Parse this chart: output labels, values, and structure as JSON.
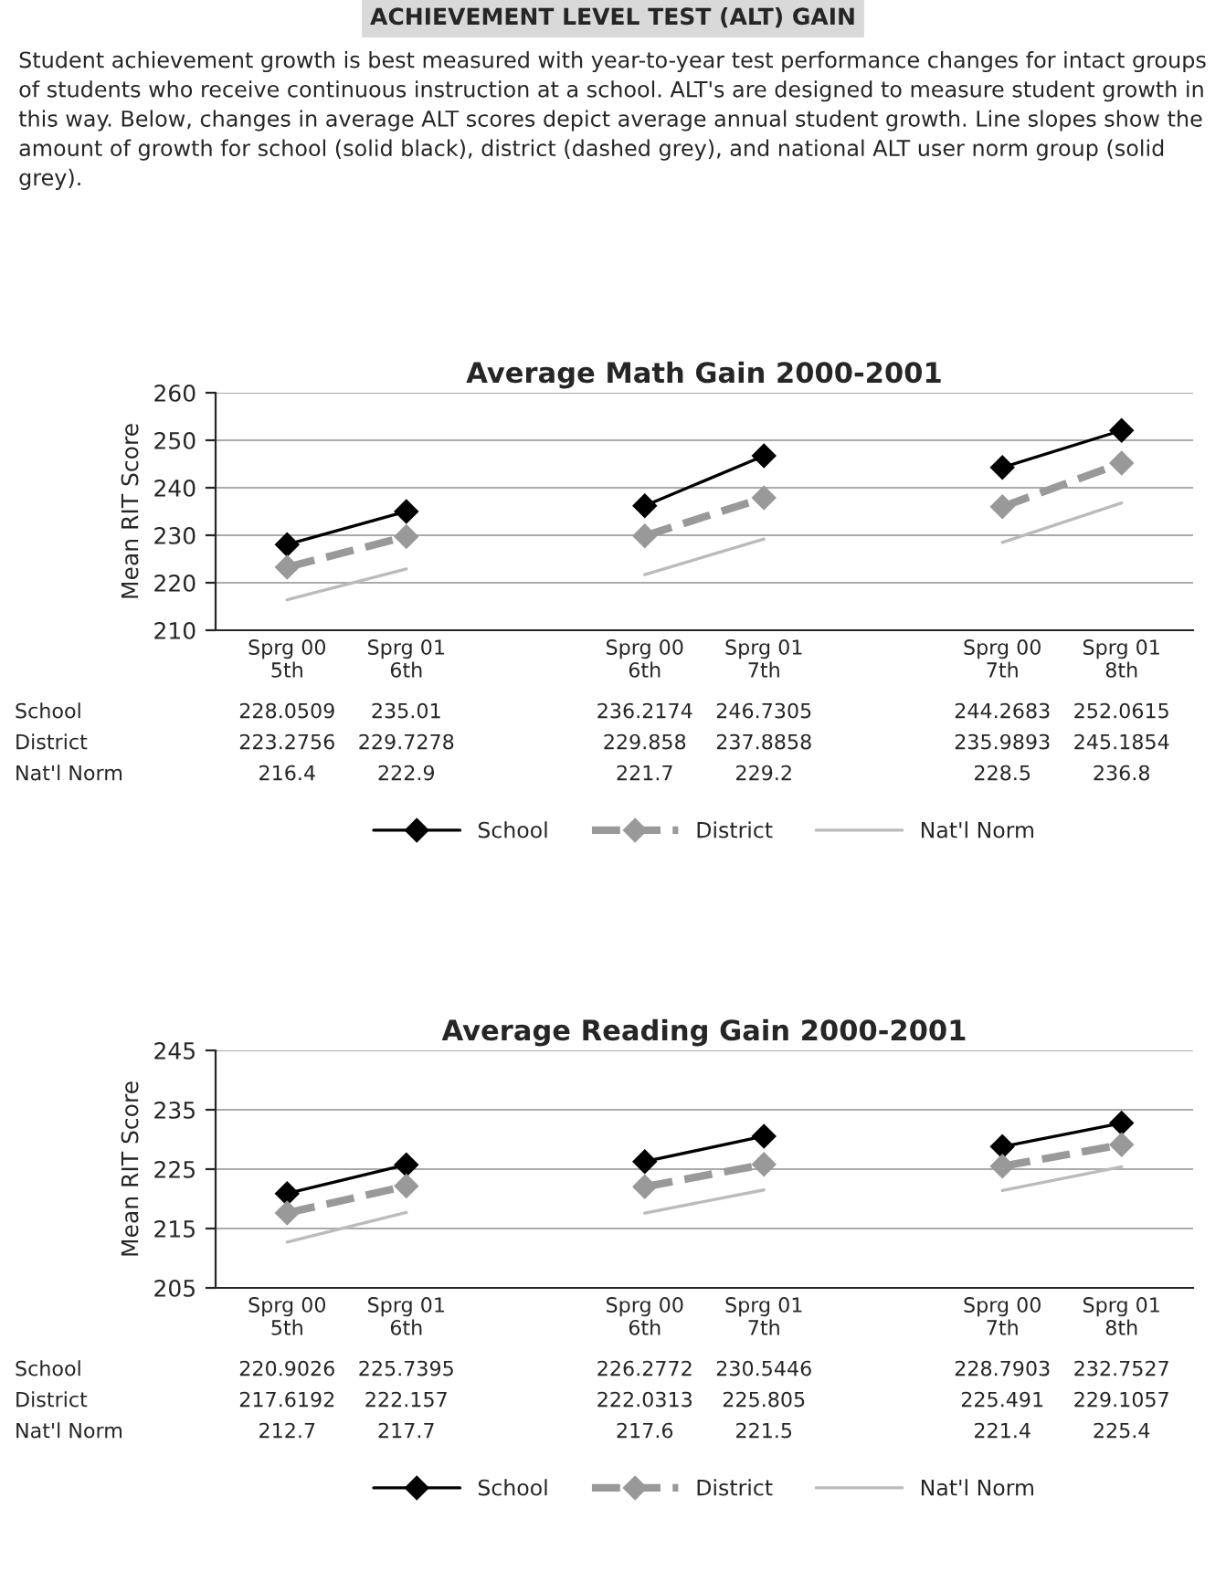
{
  "chart_data": [
    {
      "type": "line",
      "title": "Average Math Gain 2000-2001",
      "ylabel": "Mean RIT Score",
      "annotations": [
        "ACHIEVEMENT LEVEL TEST (ALT) GAIN",
        "Student achievement growth is best measured with year-to-year test performance changes for intact groups of students who receive continuous instruction at a school. ALT's are designed to measure student growth in this way. Below, changes in average ALT scores depict average annual student growth. Line slopes show the amount of growth for school (solid black), district (dashed grey), and national ALT user norm group (solid grey)."
      ],
      "categories": [
        "Sprg 00\n5th",
        "Sprg 01\n6th",
        null,
        "Sprg 00\n6th",
        "Sprg 01\n7th",
        null,
        "Sprg 00\n7th",
        "Sprg 01\n8th"
      ],
      "series": [
        {
          "name": "School",
          "color": "#000000",
          "marker": "diamond",
          "line_style": "solid",
          "values": [
            228.0509,
            235.01,
            null,
            236.2174,
            246.7305,
            null,
            244.2683,
            252.0615
          ]
        },
        {
          "name": "District",
          "color": "#999999",
          "marker": "diamond",
          "line_style": "dashed",
          "values": [
            223.2756,
            229.7278,
            null,
            229.858,
            237.8858,
            null,
            235.9893,
            245.1854
          ]
        },
        {
          "name": "Nat'l Norm",
          "color": "#bbbbbb",
          "marker": "none",
          "line_style": "solid",
          "values": [
            216.4,
            222.9,
            null,
            221.7,
            229.2,
            null,
            228.5,
            236.8
          ]
        }
      ],
      "ylim": [
        210,
        260
      ],
      "yticks": [
        210,
        220,
        230,
        240,
        250,
        260
      ],
      "grid": "y",
      "legend": "bottom",
      "data_labels": true
    },
    {
      "type": "line",
      "title": "Average Reading Gain 2000-2001",
      "ylabel": "Mean RIT Score",
      "categories": [
        "Sprg 00\n5th",
        "Sprg 01\n6th",
        null,
        "Sprg 00\n6th",
        "Sprg 01\n7th",
        null,
        "Sprg 00\n7th",
        "Sprg 01\n8th"
      ],
      "series": [
        {
          "name": "School",
          "color": "#000000",
          "marker": "diamond",
          "line_style": "solid",
          "values": [
            220.9026,
            225.7395,
            null,
            226.2772,
            230.5446,
            null,
            228.7903,
            232.7527
          ]
        },
        {
          "name": "District",
          "color": "#999999",
          "marker": "diamond",
          "line_style": "dashed",
          "values": [
            217.6192,
            222.157,
            null,
            222.0313,
            225.805,
            null,
            225.491,
            229.1057
          ]
        },
        {
          "name": "Nat'l Norm",
          "color": "#bbbbbb",
          "marker": "none",
          "line_style": "solid",
          "values": [
            212.7,
            217.7,
            null,
            217.6,
            221.5,
            null,
            221.4,
            225.4
          ]
        }
      ],
      "ylim": [
        205,
        245
      ],
      "yticks": [
        205,
        215,
        225,
        235,
        245
      ],
      "grid": "y",
      "legend": "bottom",
      "data_labels": true
    }
  ]
}
